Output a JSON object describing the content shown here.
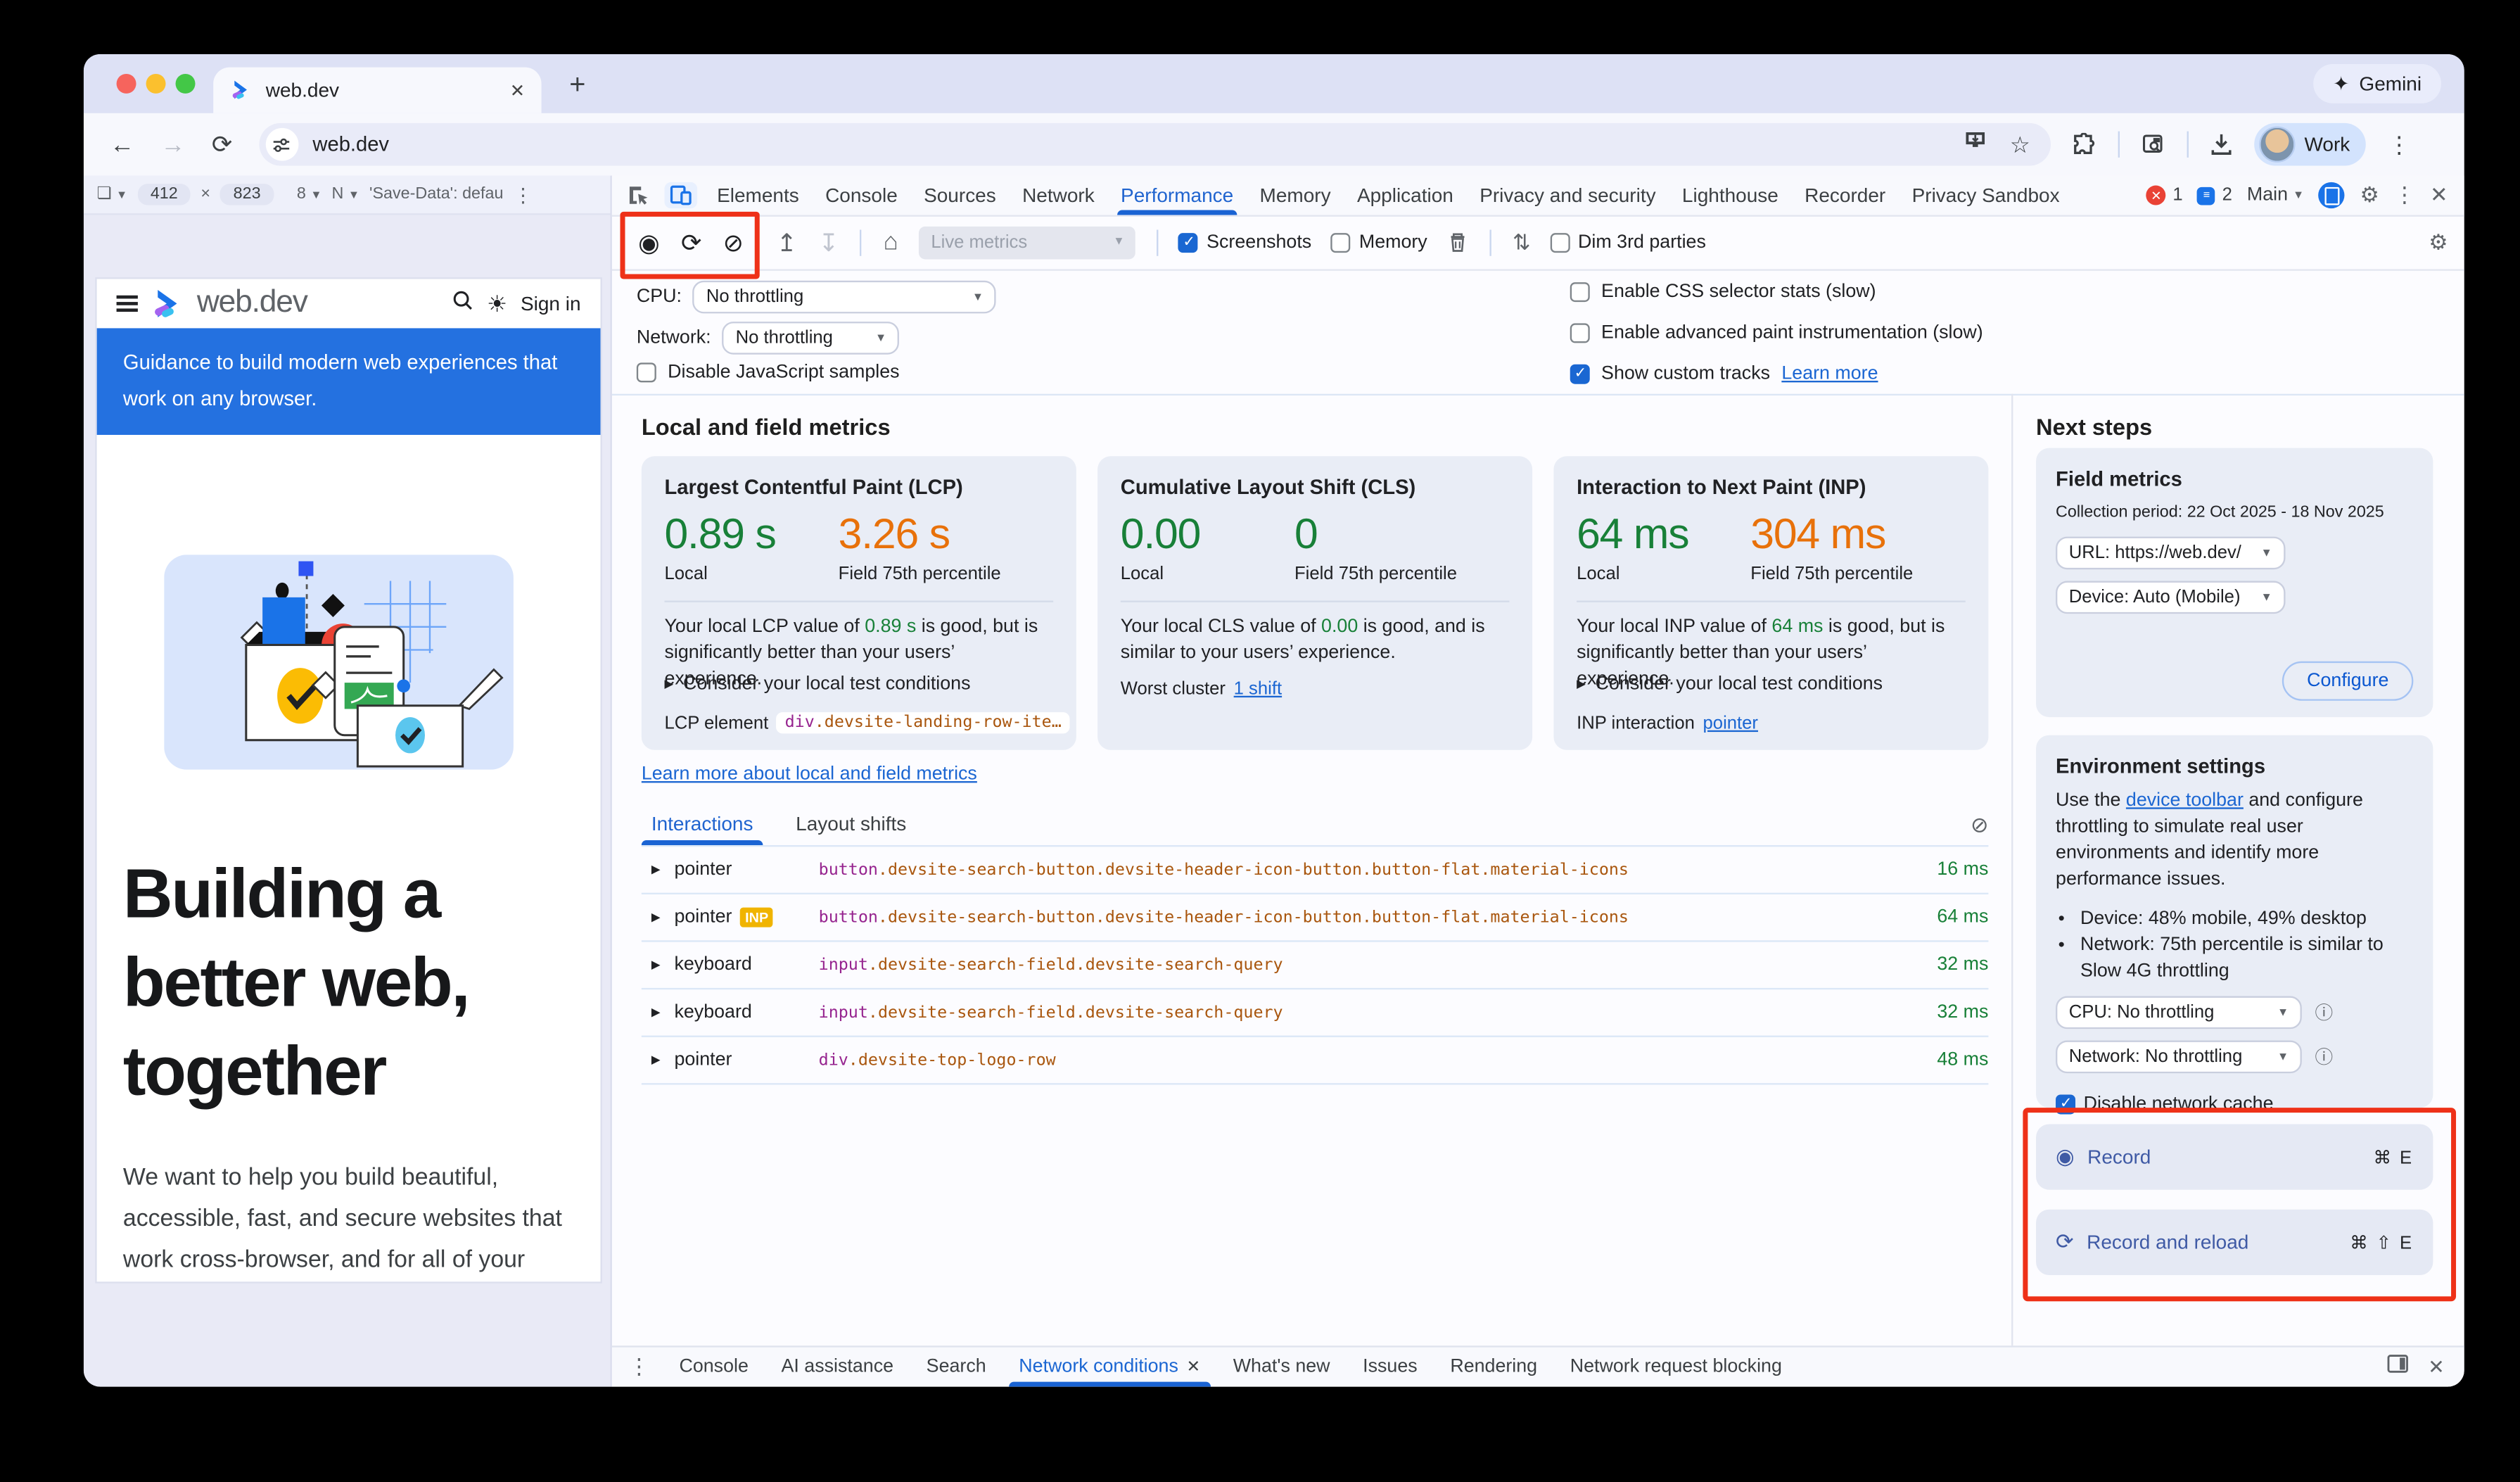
{
  "browser": {
    "tab_title": "web.dev",
    "new_tab_label": "+",
    "close_tab": "✕",
    "gemini_icon": "✦",
    "gemini_label": "Gemini",
    "url": "web.dev",
    "profile_label": "Work",
    "back_icon": "←",
    "forward_icon": "→",
    "reload_icon": "⟳",
    "star_icon": "☆",
    "kebab_icon": "⋮"
  },
  "device_toolbar": {
    "device_select_glyph": "❏",
    "width": "412",
    "times": "×",
    "height": "823",
    "zoom_trunc": "8",
    "throttle_trunc": "N",
    "save_data": "'Save-Data': defau",
    "kebab": "⋮"
  },
  "site": {
    "brand": "web.dev",
    "sign_in": "Sign in",
    "banner_line1": "Guidance to build modern web experiences that",
    "banner_line2": "work on any browser.",
    "heading_line1": "Building a",
    "heading_line2": "better web,",
    "heading_line3": "together",
    "para_line1": "We want to help you build beautiful,",
    "para_line2": "accessible, fast, and secure websites that",
    "para_line3": "work cross-browser, and for all of your"
  },
  "devtools": {
    "tabs": [
      {
        "label": "Elements",
        "active": false
      },
      {
        "label": "Console",
        "active": false
      },
      {
        "label": "Sources",
        "active": false
      },
      {
        "label": "Network",
        "active": false
      },
      {
        "label": "Performance",
        "active": true
      },
      {
        "label": "Memory",
        "active": false
      },
      {
        "label": "Application",
        "active": false
      },
      {
        "label": "Privacy and security",
        "active": false
      },
      {
        "label": "Lighthouse",
        "active": false
      },
      {
        "label": "Recorder",
        "active": false
      },
      {
        "label": "Privacy Sandbox",
        "active": false
      }
    ],
    "tab_badges": {
      "errors": "1",
      "messages": "2",
      "context_menu": "Main",
      "caret": "▾"
    },
    "toolbar": {
      "record_icon": "◉",
      "reload_icon": "⟳",
      "clear_icon": "⊘",
      "upload_icon": "↥",
      "download_icon": "↧",
      "home_icon": "⌂",
      "live_metrics": "Live metrics",
      "screenshots": "Screenshots",
      "memory": "Memory",
      "updown_icon": "⇅",
      "dim_3rd_parties": "Dim 3rd parties",
      "gear_icon": "⚙"
    },
    "settings": {
      "cpu_label": "CPU:",
      "cpu_value": "No throttling",
      "network_label": "Network:",
      "network_value": "No throttling",
      "disable_js": "Disable JavaScript samples",
      "css_stats": "Enable CSS selector stats (slow)",
      "paint_instr": "Enable advanced paint instrumentation (slow)",
      "custom_tracks": "Show custom tracks",
      "learn_more": "Learn more"
    },
    "metrics": {
      "heading": "Local and field metrics",
      "cards": [
        {
          "title": "Largest Contentful Paint (LCP)",
          "local_value": "0.89 s",
          "local_label": "Local",
          "field_value": "3.26 s",
          "field_label": "Field 75th percentile",
          "desc_before": "Your local LCP value of ",
          "desc_value": "0.89 s",
          "desc_after": " is good, but is significantly better than your users’ experience.",
          "expando": "Consider your local test conditions",
          "footer_label": "LCP element",
          "footer_code_tag": "div",
          "footer_code_rest": ".devsite-landing-row-ite…"
        },
        {
          "title": "Cumulative Layout Shift (CLS)",
          "local_value": "0.00",
          "local_label": "Local",
          "field_value": "0",
          "field_label": "Field 75th percentile",
          "desc_before": "Your local CLS value of ",
          "desc_value": "0.00",
          "desc_after": " is good, and is similar to your users’ experience.",
          "footer_label": "Worst cluster",
          "footer_link": "1 shift"
        },
        {
          "title": "Interaction to Next Paint (INP)",
          "local_value": "64 ms",
          "local_label": "Local",
          "field_value": "304 ms",
          "field_label": "Field 75th percentile",
          "desc_before": "Your local INP value of ",
          "desc_value": "64 ms",
          "desc_after": " is good, but is significantly better than your users’ experience.",
          "expando": "Consider your local test conditions",
          "footer_label": "INP interaction",
          "footer_link": "pointer"
        }
      ],
      "learn_link": "Learn more about local and field metrics",
      "view_tabs": [
        {
          "label": "Interactions",
          "active": true
        },
        {
          "label": "Layout shifts",
          "active": false
        }
      ],
      "interactions": [
        {
          "type": "pointer",
          "badge": "",
          "selector_tag": "button",
          "selector_rest": ".devsite-search-button.devsite-header-icon-button.button-flat.material-icons",
          "duration": "16 ms"
        },
        {
          "type": "pointer",
          "badge": "INP",
          "selector_tag": "button",
          "selector_rest": ".devsite-search-button.devsite-header-icon-button.button-flat.material-icons",
          "duration": "64 ms"
        },
        {
          "type": "keyboard",
          "badge": "",
          "selector_tag": "input",
          "selector_rest": ".devsite-search-field.devsite-search-query",
          "duration": "32 ms"
        },
        {
          "type": "keyboard",
          "badge": "",
          "selector_tag": "input",
          "selector_rest": ".devsite-search-field.devsite-search-query",
          "duration": "32 ms"
        },
        {
          "type": "pointer",
          "badge": "",
          "selector_tag": "div",
          "selector_rest": ".devsite-top-logo-row",
          "duration": "48 ms"
        }
      ]
    },
    "next_steps": {
      "heading": "Next steps",
      "field_metrics": {
        "title": "Field metrics",
        "collection_period": "Collection period: 22 Oct 2025 - 18 Nov 2025",
        "url_select": "URL: https://web.dev/",
        "device_select": "Device: Auto (Mobile)",
        "configure": "Configure"
      },
      "environment": {
        "title": "Environment settings",
        "desc_before": "Use the ",
        "desc_link": "device toolbar",
        "desc_after": " and configure throttling to simulate real user environments and identify more performance issues.",
        "bullet1": "Device: 48% mobile, 49% desktop",
        "bullet2": "Network: 75th percentile is similar to Slow 4G throttling",
        "cpu_select": "CPU: No throttling",
        "network_select": "Network: No throttling",
        "disable_cache": "Disable network cache"
      },
      "record_label": "Record",
      "record_shortcut": "⌘ E",
      "record_reload_label": "Record and reload",
      "record_reload_shortcut": "⌘ ⇧ E"
    },
    "drawer": {
      "items": [
        {
          "label": "Console",
          "active": false,
          "closable": false
        },
        {
          "label": "AI assistance",
          "active": false,
          "closable": false
        },
        {
          "label": "Search",
          "active": false,
          "closable": false
        },
        {
          "label": "Network conditions",
          "active": true,
          "closable": true
        },
        {
          "label": "What's new",
          "active": false,
          "closable": false
        },
        {
          "label": "Issues",
          "active": false,
          "closable": false
        },
        {
          "label": "Rendering",
          "active": false,
          "closable": false
        },
        {
          "label": "Network request blocking",
          "active": false,
          "closable": false
        }
      ]
    }
  },
  "colors": {
    "accent_blue": "#1a73e8",
    "metric_green": "#188038",
    "metric_orange": "#e8710a",
    "annotation_red": "#ee3118",
    "inp_badge_yellow": "#f0b400",
    "record_blue": "#3f5aa5",
    "banner_blue": "#2471e0"
  }
}
